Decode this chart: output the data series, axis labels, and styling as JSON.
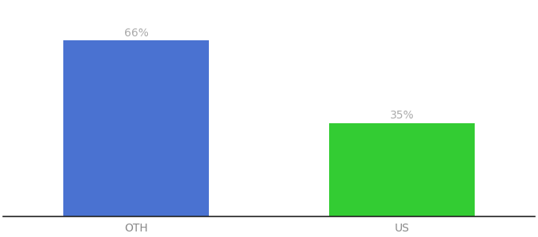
{
  "categories": [
    "OTH",
    "US"
  ],
  "values": [
    66,
    35
  ],
  "bar_colors": [
    "#4a72d1",
    "#33cc33"
  ],
  "label_texts": [
    "66%",
    "35%"
  ],
  "label_color": "#aaaaaa",
  "ylim": [
    0,
    80
  ],
  "background_color": "#ffffff",
  "tick_label_fontsize": 10,
  "value_label_fontsize": 10,
  "bar_width": 0.55,
  "xlim": [
    -0.5,
    1.5
  ]
}
